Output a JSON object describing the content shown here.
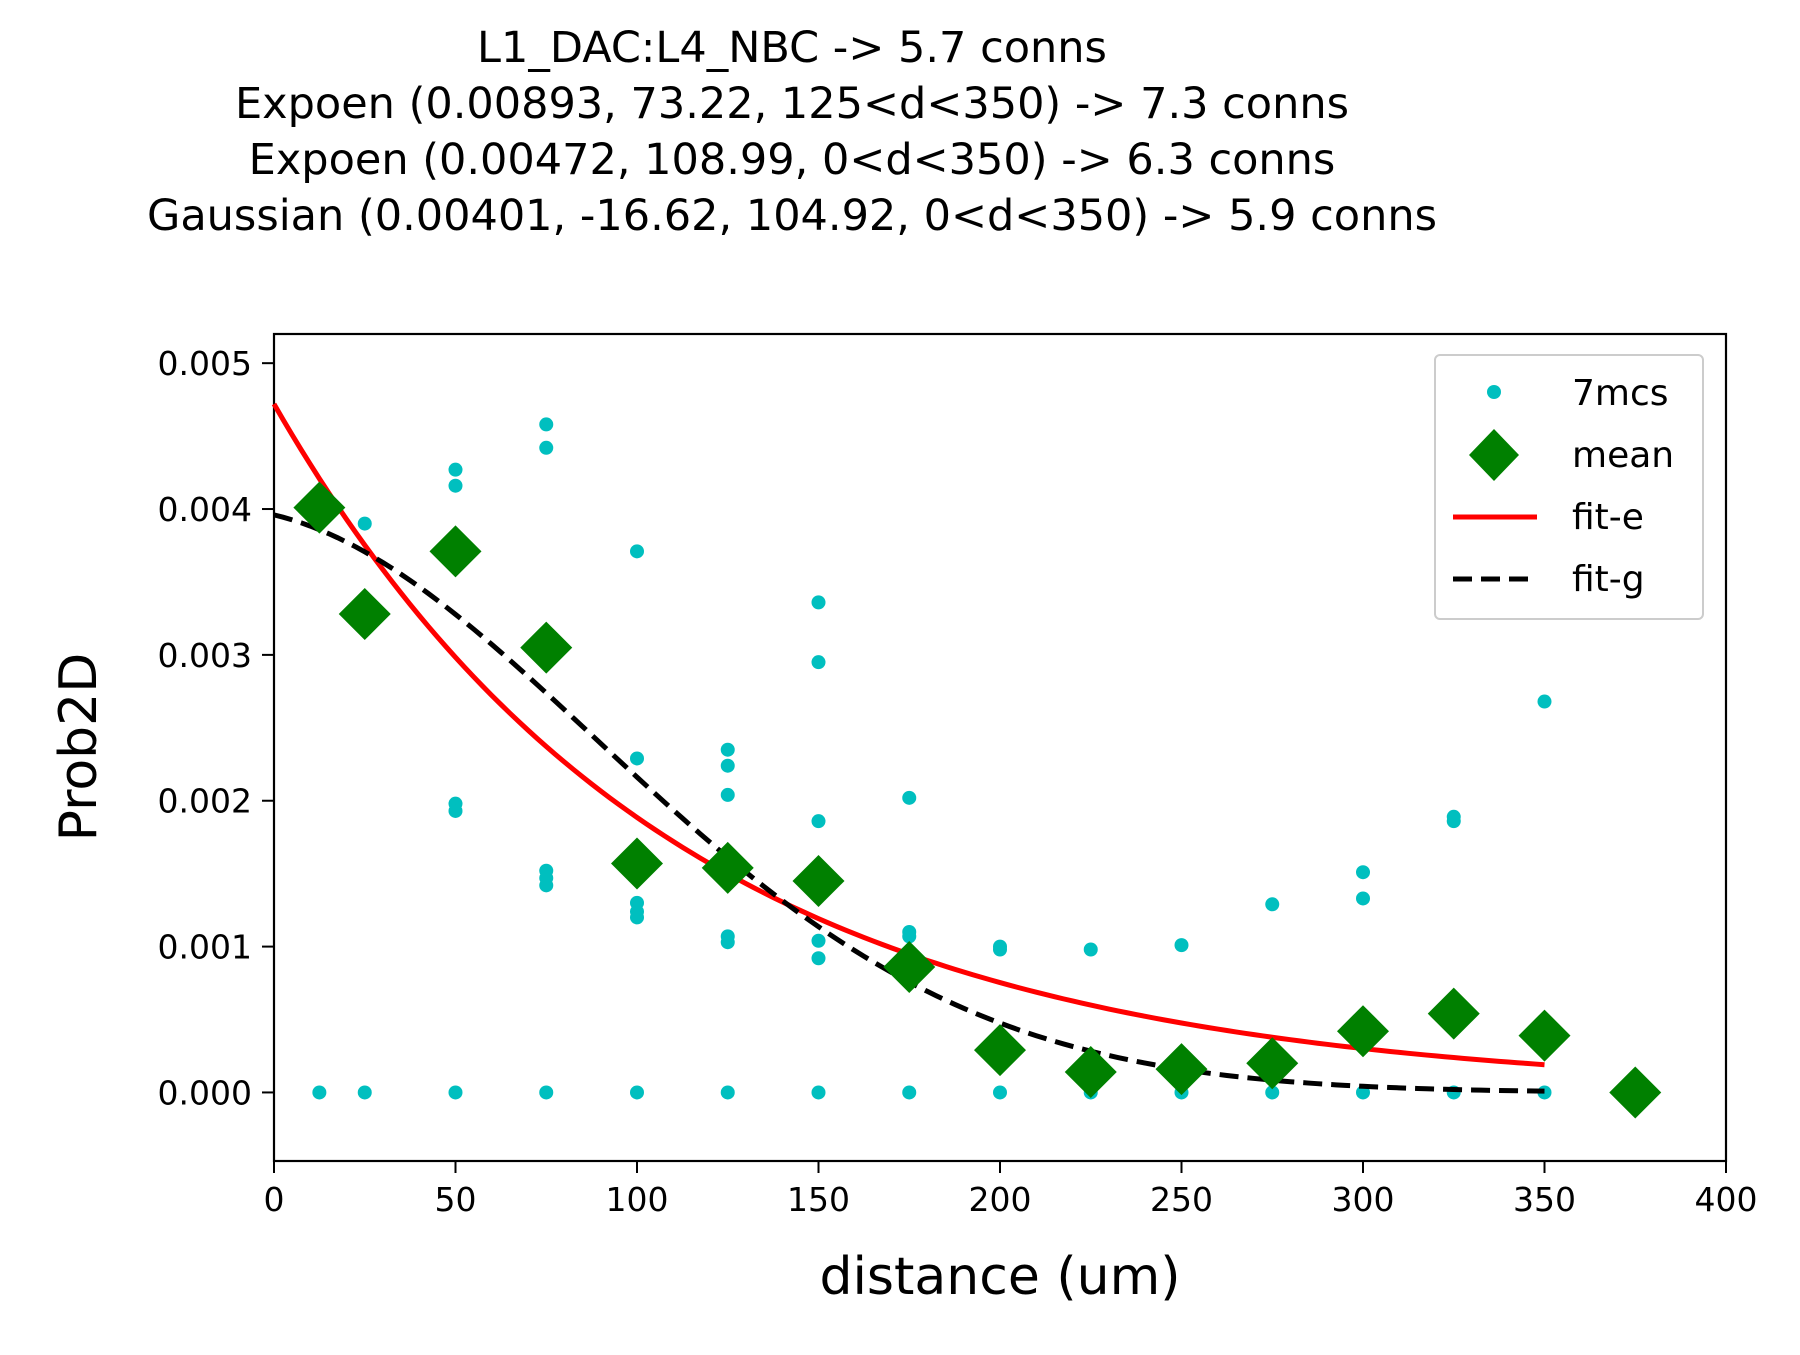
{
  "chart_data": {
    "type": "scatter",
    "title_lines": [
      "L1_DAC:L4_NBC -> 5.7 conns",
      "Expoen (0.00893, 73.22, 125<d<350) -> 7.3 conns",
      "Expoen (0.00472, 108.99, 0<d<350) -> 6.3 conns",
      "Gaussian (0.00401, -16.62, 104.92, 0<d<350) -> 5.9 conns"
    ],
    "xlabel": "distance (um)",
    "ylabel": "Prob2D",
    "xlim": [
      0,
      400
    ],
    "ylim": [
      -0.00047,
      0.0052
    ],
    "x_ticks": [
      "0",
      "50",
      "100",
      "150",
      "200",
      "250",
      "300",
      "350",
      "400"
    ],
    "y_ticks": [
      "0.000",
      "0.001",
      "0.002",
      "0.003",
      "0.004",
      "0.005"
    ],
    "legend_position": "top-right",
    "grid": false,
    "series": [
      {
        "name": "7mcs",
        "style": "points",
        "color": "#00bfbf",
        "points": [
          [
            12.5,
            0.0
          ],
          [
            25,
            0.0039
          ],
          [
            25,
            0.0
          ],
          [
            50,
            0.00427
          ],
          [
            50,
            0.00416
          ],
          [
            50,
            0.00198
          ],
          [
            50,
            0.00193
          ],
          [
            50,
            0.0
          ],
          [
            75,
            0.00458
          ],
          [
            75,
            0.00442
          ],
          [
            75,
            0.00152
          ],
          [
            75,
            0.00147
          ],
          [
            75,
            0.00142
          ],
          [
            75,
            0.0
          ],
          [
            100,
            0.00371
          ],
          [
            100,
            0.00229
          ],
          [
            100,
            0.0013
          ],
          [
            100,
            0.00124
          ],
          [
            100,
            0.0012
          ],
          [
            100,
            0.0
          ],
          [
            125,
            0.00235
          ],
          [
            125,
            0.00224
          ],
          [
            125,
            0.00204
          ],
          [
            125,
            0.00107
          ],
          [
            125,
            0.00103
          ],
          [
            125,
            0.0
          ],
          [
            150,
            0.00336
          ],
          [
            150,
            0.00295
          ],
          [
            150,
            0.00186
          ],
          [
            150,
            0.00104
          ],
          [
            150,
            0.00092
          ],
          [
            150,
            0.0
          ],
          [
            175,
            0.00202
          ],
          [
            175,
            0.0011
          ],
          [
            175,
            0.00107
          ],
          [
            175,
            0.0
          ],
          [
            200,
            0.001
          ],
          [
            200,
            0.00098
          ],
          [
            200,
            0.0
          ],
          [
            225,
            0.00098
          ],
          [
            225,
            0.0
          ],
          [
            250,
            0.00101
          ],
          [
            250,
            0.0
          ],
          [
            275,
            0.00129
          ],
          [
            275,
            0.0
          ],
          [
            300,
            0.00151
          ],
          [
            300,
            0.00133
          ],
          [
            300,
            0.0
          ],
          [
            325,
            0.00189
          ],
          [
            325,
            0.00186
          ],
          [
            325,
            0.0
          ],
          [
            350,
            0.00268
          ],
          [
            350,
            0.0
          ]
        ]
      },
      {
        "name": "mean",
        "style": "diamonds",
        "color": "#008000",
        "points": [
          [
            12.5,
            0.00401
          ],
          [
            25,
            0.00328
          ],
          [
            50,
            0.00371
          ],
          [
            75,
            0.00305
          ],
          [
            100,
            0.00157
          ],
          [
            125,
            0.00154
          ],
          [
            150,
            0.00145
          ],
          [
            175,
            0.00086
          ],
          [
            200,
            0.00029
          ],
          [
            225,
            0.00014
          ],
          [
            250,
            0.00016
          ],
          [
            275,
            0.0002
          ],
          [
            300,
            0.00042
          ],
          [
            325,
            0.00054
          ],
          [
            350,
            0.00039
          ],
          [
            375,
            0.0
          ]
        ]
      },
      {
        "name": "fit-e",
        "style": "solid",
        "color": "#ff0000",
        "function": "exponential",
        "params": {
          "a": 0.00472,
          "b": 108.99
        },
        "x_range": [
          0,
          350
        ]
      },
      {
        "name": "fit-g",
        "style": "dashed",
        "color": "#000000",
        "function": "gaussian",
        "params": {
          "a": 0.00401,
          "mu": -16.62,
          "sigma": 104.92
        },
        "x_range": [
          0,
          350
        ]
      }
    ]
  }
}
